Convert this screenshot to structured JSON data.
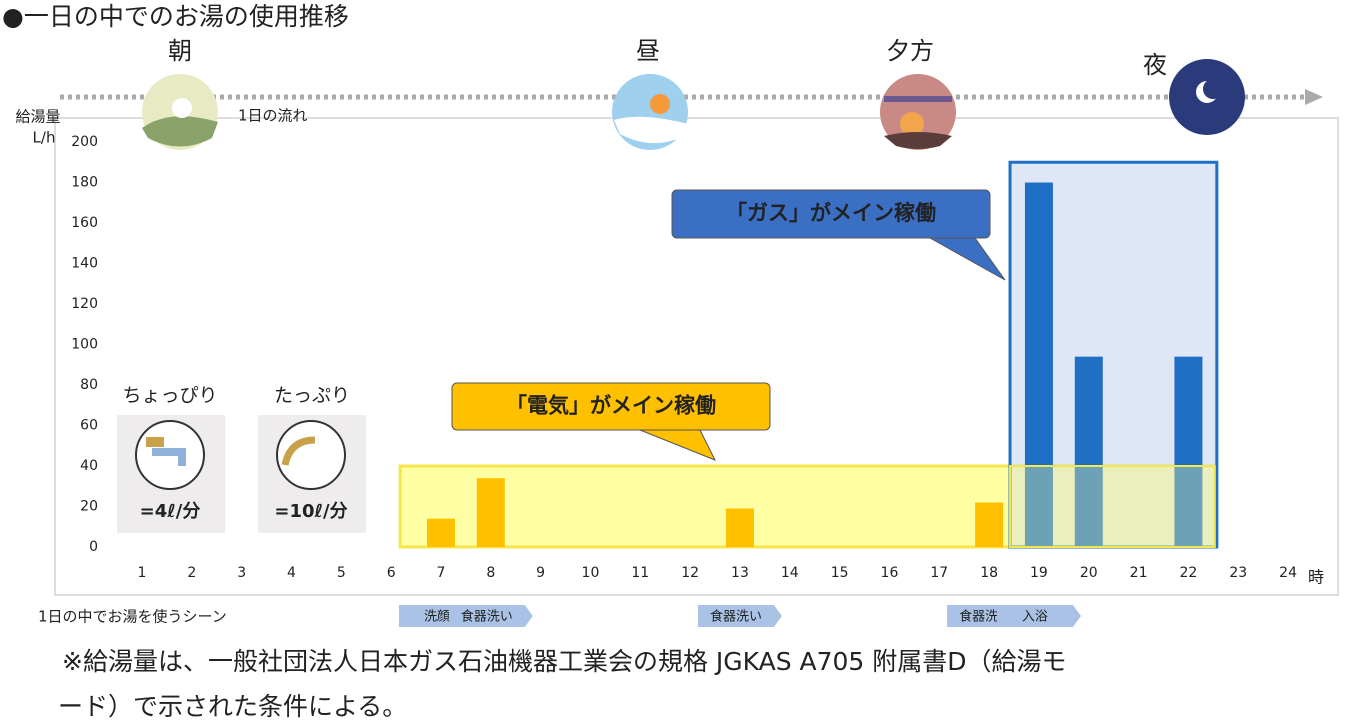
{
  "chart_data": {
    "type": "bar",
    "title": "●一日の中でのお湯の使用推移",
    "y_label": [
      "給湯量",
      "L/h"
    ],
    "x_unit": "時",
    "categories": [
      "1",
      "2",
      "3",
      "4",
      "5",
      "6",
      "7",
      "8",
      "9",
      "10",
      "11",
      "12",
      "13",
      "14",
      "15",
      "16",
      "17",
      "18",
      "19",
      "20",
      "21",
      "22",
      "23",
      "24"
    ],
    "values": [
      0,
      0,
      0,
      0,
      0,
      0,
      14,
      34,
      0,
      0,
      0,
      0,
      19,
      0,
      0,
      0,
      0,
      22,
      180,
      94,
      0,
      94,
      0,
      0
    ],
    "colors": [
      "#ffc000",
      "#ffc000",
      "#ffc000",
      "#ffc000",
      "#ffc000",
      "#ffc000",
      "#ffc000",
      "#ffc000",
      "#ffc000",
      "#ffc000",
      "#ffc000",
      "#ffc000",
      "#ffc000",
      "#ffc000",
      "#ffc000",
      "#ffc000",
      "#ffc000",
      "#ffc000",
      "#1f6fc5",
      "#1f6fc5",
      "#1f6fc5",
      "#1f6fc5",
      "#1f6fc5",
      "#1f6fc5"
    ],
    "ylim": [
      0,
      200
    ],
    "yticks": [
      0,
      20,
      40,
      60,
      80,
      100,
      120,
      140,
      160,
      180,
      200
    ],
    "regions": [
      {
        "label": "「電気」がメイン稼働",
        "x": [
          6.18,
          22.53
        ],
        "y": [
          0,
          40
        ],
        "color": "#ffff99",
        "border": "#f5e64a",
        "callout_color": "#ffc000"
      },
      {
        "label": "「ガス」がメイン稼働",
        "x": [
          18.42,
          22.57
        ],
        "y": [
          0,
          190
        ],
        "color": "#c9d7f0",
        "border": "#1f6fc5",
        "callout_color": "#3a6fc4"
      }
    ],
    "timeline": {
      "label": "1日の流れ",
      "times": [
        "朝",
        "昼",
        "夕方",
        "夜"
      ]
    },
    "scene_title": "1日の中でお湯を使うシーン",
    "scenes": [
      {
        "label": "洗顔",
        "hour": 7
      },
      {
        "label": "食器洗い",
        "hour": 8
      },
      {
        "label": "食器洗い",
        "hour": 13
      },
      {
        "label": "食器洗い",
        "hour": 18
      },
      {
        "label": "入浴",
        "hour": 19
      }
    ],
    "flows": [
      {
        "label": "ちょっぴり",
        "rate": "=4ℓ/分"
      },
      {
        "label": "たっぷり",
        "rate": "=10ℓ/分"
      }
    ],
    "footnote": [
      "※給湯量は、一般社団法人日本ガス石油機器工業会の規格 JGKAS A705 附属書D（給湯モ",
      "ード）で示された条件による。"
    ]
  }
}
